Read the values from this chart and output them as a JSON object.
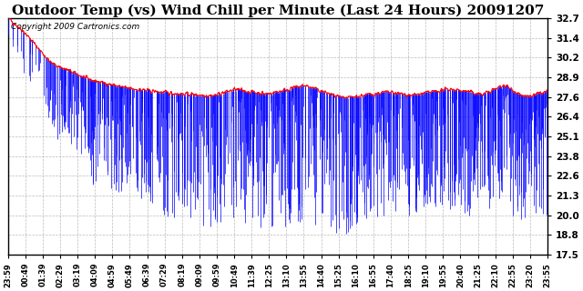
{
  "title": "Outdoor Temp (vs) Wind Chill per Minute (Last 24 Hours) 20091207",
  "copyright_text": "Copyright 2009 Cartronics.com",
  "yticks": [
    17.5,
    18.8,
    20.0,
    21.3,
    22.6,
    23.8,
    25.1,
    26.4,
    27.6,
    28.9,
    30.2,
    31.4,
    32.7
  ],
  "ymin": 17.5,
  "ymax": 32.7,
  "x_tick_labels": [
    "23:59",
    "00:49",
    "01:39",
    "02:29",
    "03:19",
    "04:09",
    "04:59",
    "05:49",
    "06:39",
    "07:29",
    "08:19",
    "09:09",
    "09:59",
    "10:49",
    "11:39",
    "12:25",
    "13:10",
    "13:55",
    "14:40",
    "15:25",
    "16:10",
    "16:55",
    "17:40",
    "18:25",
    "19:10",
    "19:55",
    "20:40",
    "21:25",
    "22:10",
    "22:55",
    "23:20",
    "23:55"
  ],
  "bg_color": "#ffffff",
  "grid_color": "#aaaaaa",
  "title_fontsize": 11,
  "copyright_fontsize": 6.5,
  "n_points": 1440
}
